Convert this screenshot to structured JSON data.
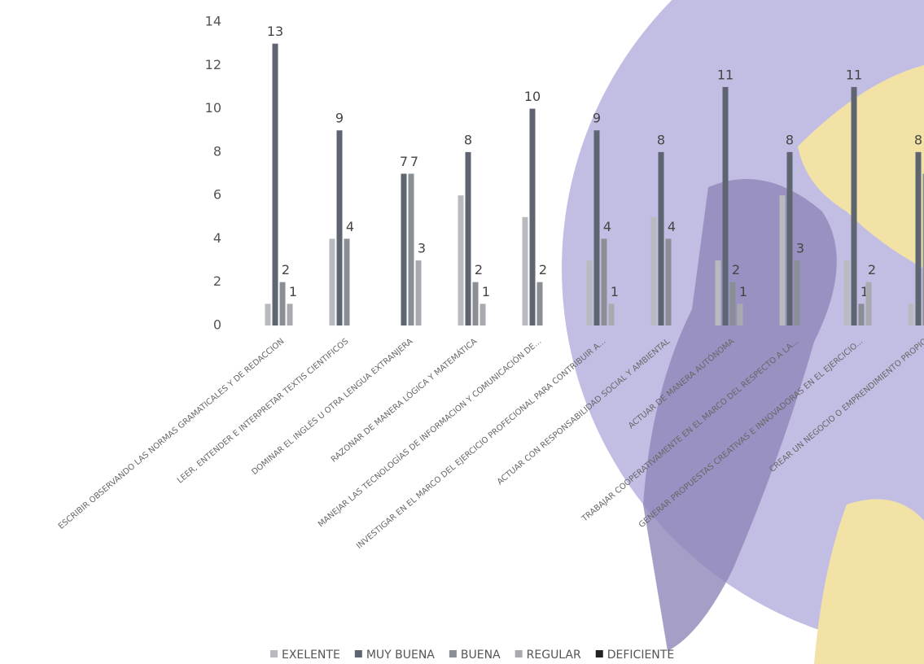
{
  "chart_data": {
    "type": "bar",
    "categories": [
      "ESCRIBIR OBSERVANDO LAS NORMAS GRAMATICALES Y DE REDACCION",
      "LEER, ENTENDER E INTERPRETAR TEXTIS CIENTIFICOS",
      "DOMINAR EL INGLÉS U OTRA LENGUA EXTRANJERA",
      "RAZONAR DE MANERA LÓGICA Y MATEMÁTICA",
      "MANEJAR LAS TECNOLOGÍAS DE INFORMACION Y COMUNICACIÓN DE...",
      "INVESTIGAR EN EL MARCO DEL EJERCICIO PROFECIONAL PARA CONTRIBUIR A...",
      "ACTUAR CON RESPONSABILIDAD SOCIAL Y AMBIENTAL",
      "ACTUAR DE MANERA AUTÓNOMA",
      "TRABAJAR COOPERATIVAMENTE EN EL MARCO DEL RESPECTO A LA...",
      "GENERAR PROPUESTAS CREATIVAS E INNOVADORAS EN EL EJERCICIO...",
      "CREAR UN NEGOCIO O EMPRENDIMIENTO PROPIO"
    ],
    "series": [
      {
        "name": "EXELENTE",
        "color": "#b9babf",
        "data_labels": false,
        "values": [
          1,
          4,
          null,
          6,
          5,
          3,
          5,
          3,
          6,
          3,
          1
        ]
      },
      {
        "name": "MUY BUENA",
        "color": "#5e6570",
        "data_labels": true,
        "values": [
          13,
          9,
          7,
          8,
          10,
          9,
          8,
          11,
          8,
          11,
          8
        ]
      },
      {
        "name": "BUENA",
        "color": "#8a8e95",
        "data_labels": true,
        "values": [
          2,
          4,
          7,
          2,
          2,
          4,
          4,
          2,
          3,
          1,
          7
        ]
      },
      {
        "name": "REGULAR",
        "color": "#a8aab0",
        "data_labels": true,
        "values": [
          1,
          null,
          3,
          1,
          null,
          1,
          null,
          1,
          null,
          2,
          null
        ]
      },
      {
        "name": "DEFICIENTE",
        "color": "#222222",
        "data_labels": true,
        "values": [
          null,
          null,
          null,
          null,
          null,
          null,
          null,
          null,
          null,
          null,
          null
        ]
      }
    ],
    "ylim": [
      0,
      14
    ],
    "yticks": [
      0,
      2,
      4,
      6,
      8,
      10,
      12,
      14
    ],
    "grid": false
  }
}
